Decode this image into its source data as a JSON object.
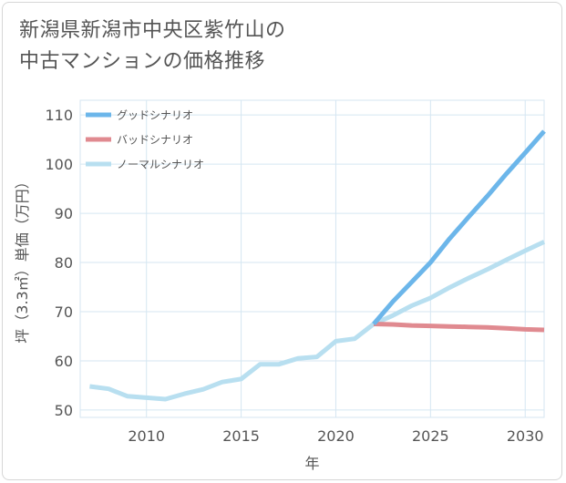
{
  "title_lines": [
    "新潟県新潟市中央区紫竹山の",
    "中古マンションの価格推移"
  ],
  "chart_data": {
    "type": "line",
    "xlabel": "年",
    "ylabel": "坪（3.3㎡）単価（万円）",
    "xlim": [
      2006.5,
      2031
    ],
    "ylim": [
      48.5,
      113
    ],
    "x_ticks": [
      2010,
      2015,
      2020,
      2025,
      2030
    ],
    "y_ticks": [
      50,
      60,
      70,
      80,
      90,
      100,
      110
    ],
    "grid": true,
    "legend_position": "top-left",
    "series": [
      {
        "name": "グッドシナリオ",
        "color": "#6cb6ea",
        "x": [
          2022,
          2023,
          2024,
          2025,
          2026,
          2027,
          2028,
          2029,
          2030,
          2031
        ],
        "y": [
          67.5,
          72.0,
          76.0,
          80.0,
          84.8,
          89.2,
          93.5,
          98.0,
          102.3,
          106.7
        ]
      },
      {
        "name": "バッドシナリオ",
        "color": "#e08a90",
        "x": [
          2022,
          2023,
          2024,
          2025,
          2026,
          2027,
          2028,
          2029,
          2030,
          2031
        ],
        "y": [
          67.5,
          67.4,
          67.2,
          67.1,
          67.0,
          66.9,
          66.8,
          66.6,
          66.4,
          66.3
        ]
      },
      {
        "name": "ノーマルシナリオ",
        "color": "#b8dff0",
        "x": [
          2007,
          2008,
          2009,
          2010,
          2011,
          2012,
          2013,
          2014,
          2015,
          2016,
          2017,
          2018,
          2019,
          2020,
          2021,
          2022,
          2023,
          2024,
          2025,
          2026,
          2027,
          2028,
          2029,
          2030,
          2031
        ],
        "y": [
          54.8,
          54.3,
          52.8,
          52.5,
          52.2,
          53.3,
          54.2,
          55.7,
          56.3,
          59.3,
          59.3,
          60.5,
          60.8,
          64.0,
          64.5,
          67.5,
          69.2,
          71.2,
          72.8,
          74.9,
          76.8,
          78.6,
          80.5,
          82.4,
          84.2
        ]
      }
    ]
  }
}
